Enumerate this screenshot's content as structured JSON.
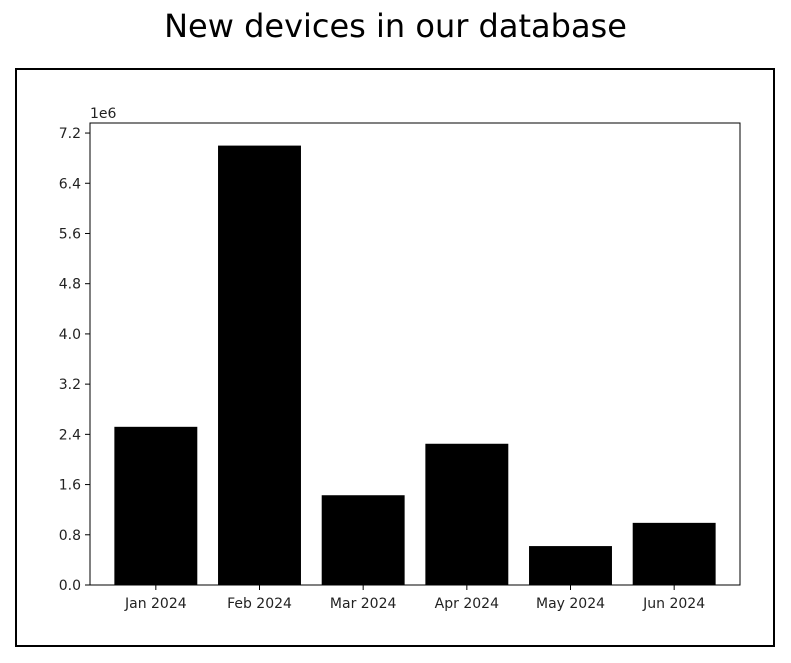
{
  "title": "New devices in our database",
  "chart_data": {
    "type": "bar",
    "title": "New devices in our database",
    "xlabel": "",
    "ylabel": "",
    "axis_multiplier": "1e6",
    "categories": [
      "Jan 2024",
      "Feb 2024",
      "Mar 2024",
      "Apr 2024",
      "May 2024",
      "Jun 2024"
    ],
    "values": [
      2520000,
      7000000,
      1430000,
      2250000,
      620000,
      990000
    ],
    "ylim": [
      0,
      7360000
    ],
    "yticks": [
      0,
      800000,
      1600000,
      2400000,
      3200000,
      4000000,
      4800000,
      5600000,
      6400000,
      7200000
    ],
    "ytick_labels": [
      "0.0",
      "0.8",
      "1.6",
      "2.4",
      "3.2",
      "4.0",
      "4.8",
      "5.6",
      "6.4",
      "7.2"
    ],
    "bar_color": "#000000",
    "grid": false,
    "legend": "none"
  }
}
